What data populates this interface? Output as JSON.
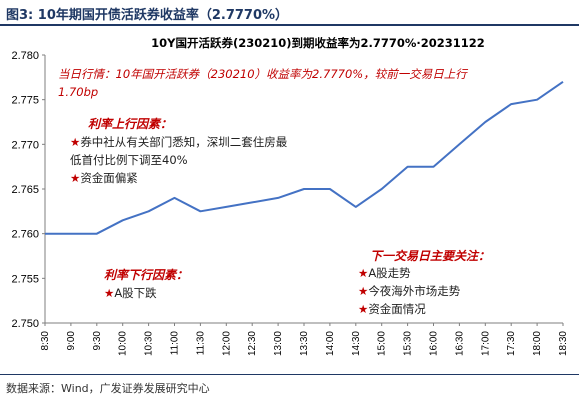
{
  "figure": {
    "title": "图3:  10年期国开债活跃券收益率（2.7770%）",
    "source": "数据来源：Wind，广发证券发展研究中心"
  },
  "chart_data": {
    "type": "line",
    "title": "10Y国开活跃券(230210)到期收益率为2.7770%·20231122",
    "x": [
      "8:30",
      "9:00",
      "9:30",
      "10:00",
      "10:30",
      "11:00",
      "11:30",
      "12:00",
      "12:30",
      "13:00",
      "13:30",
      "14:00",
      "14:30",
      "15:00",
      "15:30",
      "16:00",
      "16:30",
      "17:00",
      "17:30",
      "18:00",
      "18:30"
    ],
    "series": [
      {
        "values": [
          2.76,
          2.76,
          2.76,
          2.7615,
          2.7625,
          2.764,
          2.7625,
          2.763,
          2.7635,
          2.764,
          2.765,
          2.765,
          2.763,
          2.765,
          2.7675,
          2.7675,
          2.77,
          2.7725,
          2.7745,
          2.775,
          2.777
        ]
      }
    ],
    "ylim": [
      2.75,
      2.78
    ],
    "yticks": [
      "2.750",
      "2.755",
      "2.760",
      "2.765",
      "2.770",
      "2.775",
      "2.780"
    ],
    "line_color": "#4472c4",
    "grid": false
  },
  "annotations": {
    "today_line1": "当日行情：10年国开活跃券（230210）收益率为2.7770%，较前一交易日上行",
    "today_line2": "1.70bp",
    "up_title": "利率上行因素：",
    "up_items": [
      "券中社从有关部门悉知，深圳二套住房最",
      "低首付比例下调至40%",
      "资金面偏紧"
    ],
    "down_title": "利率下行因素：",
    "down_items": [
      "A股下跌"
    ],
    "next_title": "下一交易日主要关注：",
    "next_items": [
      "A股走势",
      "今夜海外市场走势",
      "资金面情况"
    ],
    "star": "★",
    "accent_color": "#c00000"
  }
}
